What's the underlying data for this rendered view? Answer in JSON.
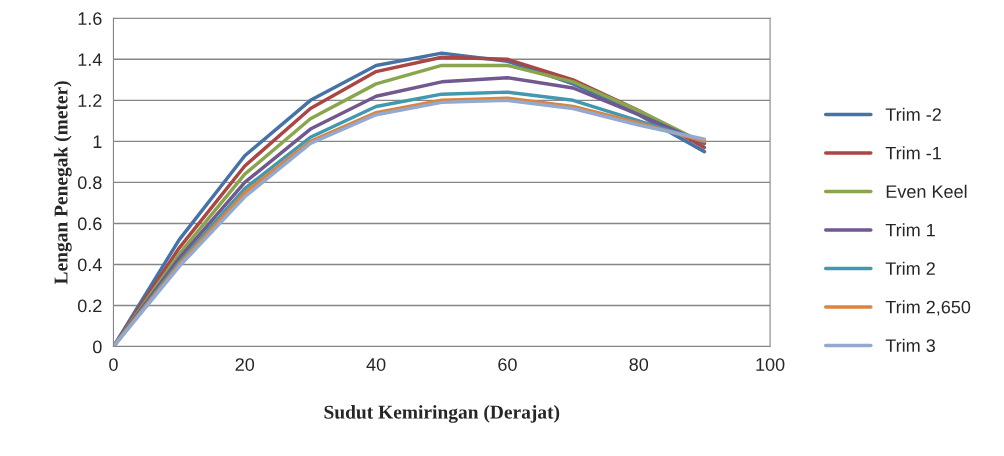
{
  "chart_data": {
    "type": "line",
    "xlabel": "Sudut Kemiringan (Derajat)",
    "ylabel": "Lengan Penegak (meter)",
    "x": [
      0,
      10,
      20,
      30,
      40,
      50,
      60,
      70,
      80,
      90
    ],
    "xlim": [
      0,
      100
    ],
    "xticks": [
      0,
      20,
      40,
      60,
      80,
      100
    ],
    "ylim": [
      0,
      1.6
    ],
    "yticks": [
      0,
      0.2,
      0.4,
      0.6,
      0.8,
      1,
      1.2,
      1.4,
      1.6
    ],
    "grid": "y",
    "legend": "right",
    "marker": "none",
    "line_style": "solid",
    "series": [
      {
        "name": "Trim -2",
        "color": "#4572a7",
        "values": [
          0,
          0.52,
          0.93,
          1.2,
          1.37,
          1.43,
          1.39,
          1.28,
          1.13,
          0.95
        ]
      },
      {
        "name": "Trim -1",
        "color": "#aa4643",
        "values": [
          0,
          0.48,
          0.88,
          1.16,
          1.34,
          1.41,
          1.4,
          1.3,
          1.15,
          0.97
        ]
      },
      {
        "name": "Even Keel",
        "color": "#89a54e",
        "values": [
          0,
          0.45,
          0.84,
          1.11,
          1.28,
          1.37,
          1.37,
          1.29,
          1.15,
          0.99
        ]
      },
      {
        "name": "Trim 1",
        "color": "#71588f",
        "values": [
          0,
          0.43,
          0.8,
          1.06,
          1.22,
          1.29,
          1.31,
          1.26,
          1.13,
          0.99
        ]
      },
      {
        "name": "Trim 2",
        "color": "#4198af",
        "values": [
          0,
          0.41,
          0.77,
          1.02,
          1.17,
          1.23,
          1.24,
          1.2,
          1.1,
          1.0
        ]
      },
      {
        "name": "Trim 2,650",
        "color": "#db843d",
        "values": [
          0,
          0.4,
          0.75,
          1.0,
          1.14,
          1.2,
          1.21,
          1.17,
          1.09,
          1.0
        ]
      },
      {
        "name": "Trim 3",
        "color": "#93a9cf",
        "values": [
          0,
          0.39,
          0.73,
          0.99,
          1.13,
          1.19,
          1.2,
          1.16,
          1.08,
          1.01
        ]
      }
    ]
  }
}
